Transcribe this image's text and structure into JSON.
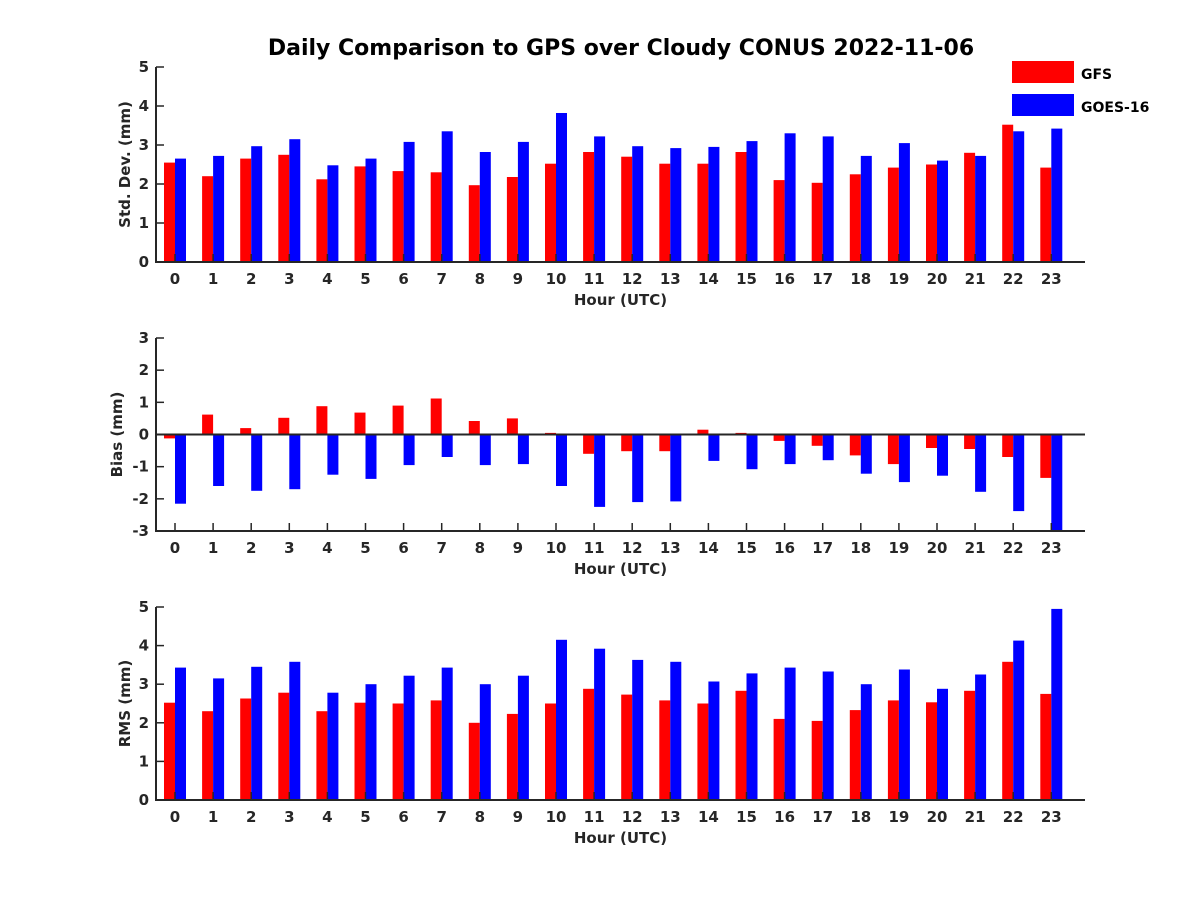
{
  "figure": {
    "title": "Daily Comparison to GPS over Cloudy CONUS 2022-11-06"
  },
  "legend": {
    "placement": "top-right",
    "items": [
      {
        "label": "GFS",
        "color": "#ff0000"
      },
      {
        "label": "GOES-16",
        "color": "#0000ff"
      }
    ]
  },
  "chart_data": [
    {
      "type": "bar",
      "xlabel": "Hour (UTC)",
      "ylabel": "Std. Dev. (mm)",
      "ylim": [
        0,
        5
      ],
      "yticks": [
        0,
        1,
        2,
        3,
        4,
        5
      ],
      "grid": false,
      "categories": [
        "0",
        "1",
        "2",
        "3",
        "4",
        "5",
        "6",
        "7",
        "8",
        "9",
        "10",
        "11",
        "12",
        "13",
        "14",
        "15",
        "16",
        "17",
        "18",
        "19",
        "20",
        "21",
        "22",
        "23"
      ],
      "series": [
        {
          "name": "GFS",
          "color": "#ff0000",
          "values": [
            2.55,
            2.2,
            2.65,
            2.75,
            2.12,
            2.45,
            2.33,
            2.3,
            1.97,
            2.18,
            2.52,
            2.82,
            2.7,
            2.52,
            2.52,
            2.82,
            2.1,
            2.03,
            2.25,
            2.42,
            2.5,
            2.8,
            3.52,
            2.42
          ]
        },
        {
          "name": "GOES-16",
          "color": "#0000ff",
          "values": [
            2.65,
            2.72,
            2.97,
            3.15,
            2.48,
            2.65,
            3.08,
            3.35,
            2.82,
            3.08,
            3.82,
            3.22,
            2.97,
            2.92,
            2.95,
            3.1,
            3.3,
            3.22,
            2.72,
            3.05,
            2.6,
            2.72,
            3.35,
            3.42
          ]
        }
      ]
    },
    {
      "type": "bar",
      "xlabel": "Hour (UTC)",
      "ylabel": "Bias (mm)",
      "ylim": [
        -3,
        3
      ],
      "yticks": [
        -3,
        -2,
        -1,
        0,
        1,
        2,
        3
      ],
      "grid": false,
      "categories": [
        "0",
        "1",
        "2",
        "3",
        "4",
        "5",
        "6",
        "7",
        "8",
        "9",
        "10",
        "11",
        "12",
        "13",
        "14",
        "15",
        "16",
        "17",
        "18",
        "19",
        "20",
        "21",
        "22",
        "23"
      ],
      "series": [
        {
          "name": "GFS",
          "color": "#ff0000",
          "values": [
            -0.12,
            0.62,
            0.2,
            0.52,
            0.88,
            0.68,
            0.9,
            1.12,
            0.42,
            0.5,
            0.05,
            -0.6,
            -0.52,
            -0.52,
            0.15,
            0.05,
            -0.2,
            -0.35,
            -0.65,
            -0.92,
            -0.42,
            -0.45,
            -0.7,
            -1.35
          ]
        },
        {
          "name": "GOES-16",
          "color": "#0000ff",
          "values": [
            -2.15,
            -1.6,
            -1.75,
            -1.7,
            -1.25,
            -1.38,
            -0.95,
            -0.7,
            -0.95,
            -0.92,
            -1.6,
            -2.25,
            -2.1,
            -2.08,
            -0.82,
            -1.08,
            -0.92,
            -0.8,
            -1.22,
            -1.48,
            -1.28,
            -1.78,
            -2.38,
            -3.0
          ]
        }
      ]
    },
    {
      "type": "bar",
      "xlabel": "Hour (UTC)",
      "ylabel": "RMS (mm)",
      "ylim": [
        0,
        5
      ],
      "yticks": [
        0,
        1,
        2,
        3,
        4,
        5
      ],
      "grid": false,
      "categories": [
        "0",
        "1",
        "2",
        "3",
        "4",
        "5",
        "6",
        "7",
        "8",
        "9",
        "10",
        "11",
        "12",
        "13",
        "14",
        "15",
        "16",
        "17",
        "18",
        "19",
        "20",
        "21",
        "22",
        "23"
      ],
      "series": [
        {
          "name": "GFS",
          "color": "#ff0000",
          "values": [
            2.52,
            2.3,
            2.63,
            2.78,
            2.3,
            2.52,
            2.5,
            2.58,
            2.0,
            2.23,
            2.5,
            2.88,
            2.73,
            2.58,
            2.5,
            2.83,
            2.1,
            2.05,
            2.33,
            2.58,
            2.53,
            2.83,
            3.58,
            2.75
          ]
        },
        {
          "name": "GOES-16",
          "color": "#0000ff",
          "values": [
            3.43,
            3.15,
            3.45,
            3.58,
            2.78,
            3.0,
            3.22,
            3.43,
            3.0,
            3.22,
            4.15,
            3.92,
            3.63,
            3.58,
            3.07,
            3.28,
            3.43,
            3.33,
            3.0,
            3.38,
            2.88,
            3.25,
            4.13,
            4.95
          ]
        }
      ]
    }
  ]
}
